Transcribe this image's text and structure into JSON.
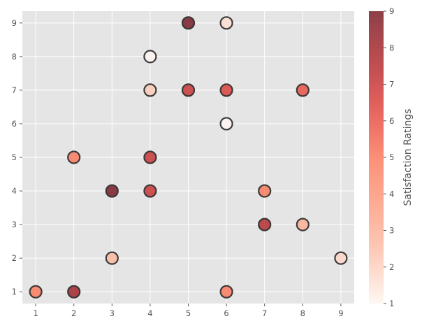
{
  "chart_data": {
    "type": "scatter",
    "title": "",
    "xlabel": "",
    "ylabel": "",
    "xlim": [
      0.65,
      9.35
    ],
    "ylim": [
      0.65,
      9.35
    ],
    "x_ticks": [
      1,
      2,
      3,
      4,
      5,
      6,
      7,
      8,
      9
    ],
    "y_ticks": [
      1,
      2,
      3,
      4,
      5,
      6,
      7,
      8,
      9
    ],
    "grid": true,
    "background": "#e5e5e5",
    "grid_color": "#ffffff",
    "marker_edge_color": "#333333",
    "colormap": "Reds",
    "colormap_stops": [
      "#fff5f0",
      "#fcbba1",
      "#fc9272",
      "#fb6a4a",
      "#de2d26",
      "#a50f15",
      "#67000d"
    ],
    "point_alpha": 0.75,
    "colorbar": {
      "label": "Satisfaction Ratings",
      "range": [
        1,
        9
      ],
      "ticks": [
        1,
        2,
        3,
        4,
        5,
        6,
        7,
        8,
        9
      ]
    },
    "points": [
      {
        "x": 5,
        "y": 9,
        "rating": 9
      },
      {
        "x": 6,
        "y": 9,
        "rating": 1.6
      },
      {
        "x": 4,
        "y": 8,
        "rating": 1
      },
      {
        "x": 4,
        "y": 7,
        "rating": 2.1
      },
      {
        "x": 5,
        "y": 7,
        "rating": 7
      },
      {
        "x": 6,
        "y": 7,
        "rating": 6.5
      },
      {
        "x": 8,
        "y": 7,
        "rating": 6
      },
      {
        "x": 6,
        "y": 6,
        "rating": 1
      },
      {
        "x": 2,
        "y": 5,
        "rating": 5
      },
      {
        "x": 4,
        "y": 5,
        "rating": 7
      },
      {
        "x": 3,
        "y": 4,
        "rating": 9
      },
      {
        "x": 4,
        "y": 4,
        "rating": 7
      },
      {
        "x": 7,
        "y": 4,
        "rating": 5
      },
      {
        "x": 7,
        "y": 3,
        "rating": 7.5
      },
      {
        "x": 8,
        "y": 3,
        "rating": 3
      },
      {
        "x": 3,
        "y": 2,
        "rating": 2.7
      },
      {
        "x": 9,
        "y": 2,
        "rating": 1.8
      },
      {
        "x": 1,
        "y": 1,
        "rating": 5
      },
      {
        "x": 2,
        "y": 1,
        "rating": 8
      },
      {
        "x": 6,
        "y": 1,
        "rating": 5
      }
    ]
  }
}
